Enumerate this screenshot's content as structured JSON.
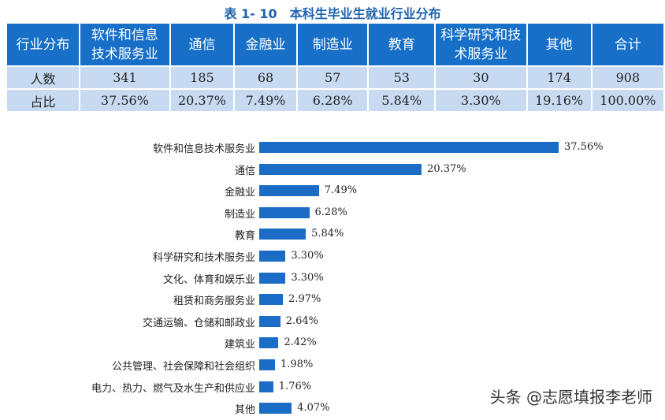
{
  "title": "表 1- 10　本科生毕业生就业行业分布",
  "table": {
    "headers": [
      "行业分布",
      "软件和信息技术服务业",
      "通信",
      "金融业",
      "制造业",
      "教育",
      "科学研究和技术服务业",
      "其他",
      "合计"
    ],
    "rows": [
      {
        "label": "人数",
        "values": [
          "341",
          "185",
          "68",
          "57",
          "53",
          "30",
          "174",
          "908"
        ]
      },
      {
        "label": "占比",
        "values": [
          "37.56%",
          "20.37%",
          "7.49%",
          "6.28%",
          "5.84%",
          "3.30%",
          "19.16%",
          "100.00%"
        ]
      }
    ]
  },
  "chart_data": {
    "type": "bar",
    "orientation": "horizontal",
    "categories": [
      "软件和信息技术服务业",
      "通信",
      "金融业",
      "制造业",
      "教育",
      "科学研究和技术服务业",
      "文化、体育和娱乐业",
      "租赁和商务服务业",
      "交通运输、仓储和邮政业",
      "建筑业",
      "公共管理、社会保障和社会组织",
      "电力、热力、燃气及水生产和供应业",
      "其他"
    ],
    "values": [
      37.56,
      20.37,
      7.49,
      6.28,
      5.84,
      3.3,
      3.3,
      2.97,
      2.64,
      2.42,
      1.98,
      1.76,
      4.07
    ],
    "data_labels": [
      "37.56%",
      "20.37%",
      "7.49%",
      "6.28%",
      "5.84%",
      "3.30%",
      "3.30%",
      "2.97%",
      "2.64%",
      "2.42%",
      "1.98%",
      "1.76%",
      "4.07%"
    ],
    "unit": "%",
    "grid": false,
    "color": "#1a6cc4"
  },
  "watermark": "头条 @志愿填报李老师"
}
